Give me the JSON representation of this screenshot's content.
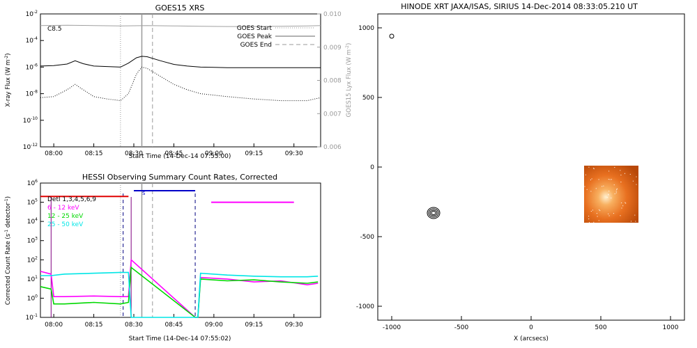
{
  "chart_data": [
    {
      "type": "line",
      "title": "GOES15 XRS",
      "flare_class": "C8.5",
      "xlabel": "Start Time (14-Dec-14 07:55:00)",
      "ylabel": "X-ray Flux (W m",
      "ylabel_sup": "-2",
      "ylabel_end": ")",
      "y2label": "GOES15 Lyx Flux (W m",
      "y2label_sup": "-2",
      "y2label_end": ")",
      "x_ticks": [
        "08:00",
        "08:15",
        "08:30",
        "08:45",
        "09:00",
        "09:15",
        "09:30"
      ],
      "y_ticks": [
        "10",
        "10",
        "10",
        "10",
        "10",
        "10"
      ],
      "y_tick_exps": [
        "-2",
        "-4",
        "-6",
        "-8",
        "-10",
        "-12"
      ],
      "y2_ticks": [
        "0.010",
        "0.009",
        "0.008",
        "0.007",
        "0.006"
      ],
      "ylim": [
        1e-12,
        0.01
      ],
      "y2lim": [
        0.006,
        0.01
      ],
      "xlim_minutes": [
        0,
        105
      ],
      "ylog": true,
      "legend": [
        "GOES Start",
        "GOES Peak",
        "GOES End"
      ],
      "legend_position": "top-right",
      "markers": {
        "goes_start_min": 30,
        "goes_peak_min": 38,
        "goes_end_min": 42
      },
      "series": [
        {
          "key": "long",
          "axis": "left",
          "color": "#000000",
          "style": "solid",
          "x": [
            0,
            5,
            10,
            13,
            16,
            20,
            25,
            30,
            33,
            36,
            38,
            40,
            45,
            50,
            55,
            60,
            65,
            70,
            80,
            90,
            100,
            105
          ],
          "values": [
            1.2e-06,
            1.3e-06,
            1.7e-06,
            3e-06,
            1.8e-06,
            1.2e-06,
            1.1e-06,
            1e-06,
            2e-06,
            5e-06,
            6.5e-06,
            6e-06,
            3e-06,
            1.6e-06,
            1.2e-06,
            1e-06,
            9.5e-07,
            9e-07,
            9e-07,
            9e-07,
            9e-07,
            9e-07
          ]
        },
        {
          "key": "short",
          "axis": "left",
          "color": "#000000",
          "style": "dotted",
          "x": [
            0,
            5,
            10,
            13,
            16,
            20,
            25,
            30,
            33,
            36,
            38,
            40,
            45,
            50,
            55,
            60,
            70,
            80,
            90,
            100,
            105
          ],
          "values": [
            5e-09,
            6e-09,
            2e-08,
            5e-08,
            2e-08,
            6e-09,
            4e-09,
            3e-09,
            1e-08,
            3e-07,
            1e-06,
            8e-07,
            2e-07,
            5e-08,
            2e-08,
            1e-08,
            6e-09,
            4e-09,
            3e-09,
            3e-09,
            5e-09
          ]
        },
        {
          "key": "lya",
          "axis": "right",
          "color": "#a0a0a0",
          "style": "solid",
          "x": [
            0,
            10,
            20,
            30,
            40,
            50,
            60,
            70,
            80,
            90,
            100,
            105
          ],
          "values": [
            0.00965,
            0.00966,
            0.00965,
            0.00964,
            0.00965,
            0.00964,
            0.00963,
            0.00962,
            0.00962,
            0.00963,
            0.00964,
            0.00965
          ]
        }
      ]
    },
    {
      "type": "line",
      "title": "HESSI Observing Summary Count Rates, Corrected",
      "xlabel": "Start Time (14-Dec-14 07:55:02)",
      "ylabel": "Corrected Count Rate (s",
      "ylabel_sup": "-1",
      "ylabel_mid": " detector",
      "ylabel_sup2": "-1",
      "ylabel_end": ")",
      "x_ticks": [
        "08:00",
        "08:15",
        "08:30",
        "08:45",
        "09:00",
        "09:15",
        "09:30"
      ],
      "y_ticks": [
        "10",
        "10",
        "10",
        "10",
        "10",
        "10",
        "10",
        "10"
      ],
      "y_tick_exps": [
        "6",
        "5",
        "4",
        "3",
        "2",
        "1",
        "0",
        "-1"
      ],
      "ylim": [
        0.1,
        1000000.0
      ],
      "xlim_minutes": [
        0,
        105
      ],
      "ylog": true,
      "legend": [
        {
          "label": "Detl 1,3,4,5,6,9",
          "color": "#000000"
        },
        {
          "label": "6 - 12 keV",
          "color": "#ff00ff"
        },
        {
          "label": "12 - 25 keV",
          "color": "#00d800"
        },
        {
          "label": "25 - 50 keV",
          "color": "#00e6e6"
        }
      ],
      "legend_position": "top-left",
      "annotation": "S",
      "flags": [
        {
          "color": "#e00000",
          "start_min": 0,
          "end_min": 33,
          "value": 200000.0
        },
        {
          "color": "#0000c8",
          "start_min": 35,
          "end_min": 58,
          "value": 400000.0
        },
        {
          "color": "#ff00ff",
          "start_min": 64,
          "end_min": 95,
          "value": 100000.0
        }
      ],
      "series": [
        {
          "key": "lo",
          "name": "6 - 12 keV",
          "color": "#ff00ff",
          "x": [
            0,
            4,
            5,
            9,
            20,
            30,
            33,
            34,
            58,
            59,
            60,
            70,
            80,
            90,
            100,
            104
          ],
          "values": [
            25,
            18,
            1.2,
            1.2,
            1.3,
            1.2,
            1.2,
            100,
            0.1,
            0.1,
            12,
            10,
            7,
            8,
            5,
            6
          ]
        },
        {
          "key": "mid",
          "name": "12 - 25 keV",
          "color": "#00d800",
          "x": [
            0,
            4,
            5,
            9,
            20,
            30,
            33,
            34,
            58,
            59,
            60,
            70,
            80,
            90,
            100,
            104
          ],
          "values": [
            4,
            3,
            0.5,
            0.5,
            0.6,
            0.5,
            0.6,
            40,
            0.1,
            0.1,
            10,
            8,
            9,
            7,
            6,
            7
          ]
        },
        {
          "key": "hi",
          "name": "25 - 50 keV",
          "color": "#00e6e6",
          "x": [
            0,
            4,
            9,
            20,
            30,
            33,
            34,
            58,
            59,
            60,
            70,
            80,
            90,
            100,
            104
          ],
          "values": [
            15,
            15,
            18,
            20,
            22,
            22,
            0.1,
            0.1,
            0.1,
            20,
            16,
            14,
            13,
            13,
            14
          ]
        }
      ],
      "markers": {
        "dashed_purple_min": [
          31,
          58
        ],
        "solid_purple_min": [
          4,
          34
        ],
        "grey_dotted_min": [
          30
        ],
        "grey_solid_min": [
          38
        ],
        "grey_dashed_min": [
          42
        ]
      }
    },
    {
      "type": "scatter",
      "title": "HINODE XRT JAXA/ISAS, SIRIUS 14-Dec-2014 08:33:05.210 UT",
      "xlabel": "X (arcsecs)",
      "ylabel": "",
      "x_ticks": [
        "-1000",
        "-500",
        "0",
        "500",
        "1000"
      ],
      "y_ticks": [
        "1000",
        "500",
        "0",
        "-500",
        "-1000"
      ],
      "xlim": [
        -1100,
        1100
      ],
      "ylim": [
        -1100,
        1100
      ],
      "small_circle": {
        "x": -1000,
        "y": 940
      },
      "contour_center": {
        "x": -700,
        "y": -330
      },
      "image_patch": {
        "x0": 380,
        "x1": 770,
        "y0": -400,
        "y1": 10
      }
    }
  ]
}
